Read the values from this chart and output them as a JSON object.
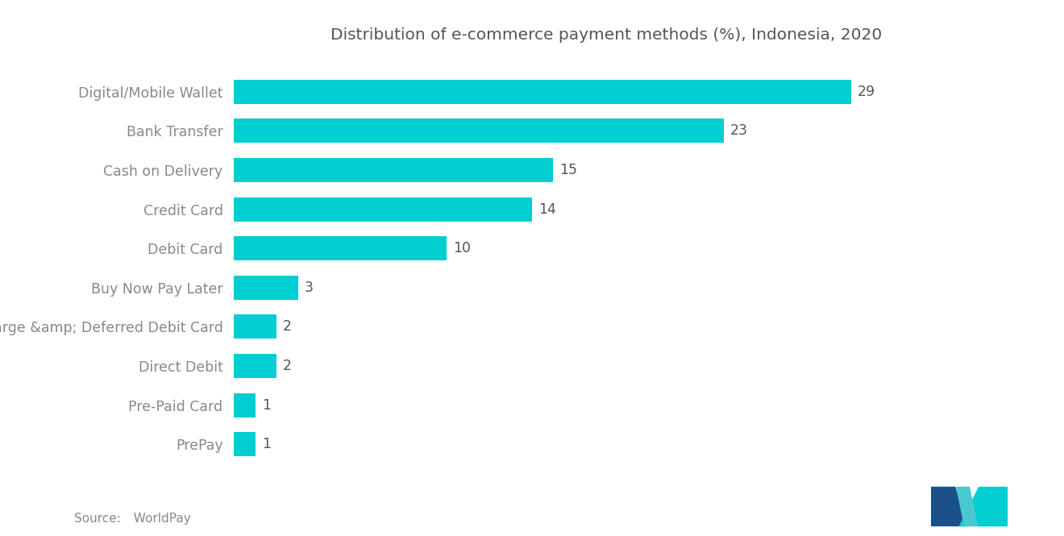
{
  "title": "Distribution of e-commerce payment methods (%), Indonesia, 2020",
  "categories": [
    "PrePay",
    "Pre-Paid Card",
    "Direct Debit",
    "Charge &amp; Deferred Debit Card",
    "Buy Now Pay Later",
    "Debit Card",
    "Credit Card",
    "Cash on Delivery",
    "Bank Transfer",
    "Digital/Mobile Wallet"
  ],
  "values": [
    1,
    1,
    2,
    2,
    3,
    10,
    14,
    15,
    23,
    29
  ],
  "bar_color": "#00CED1",
  "label_color": "#888888",
  "value_color": "#555555",
  "title_color": "#555555",
  "background_color": "#FFFFFF",
  "source_label": "Source:",
  "source_value": "  WorldPay",
  "xlim": [
    0,
    35
  ],
  "title_fontsize": 14.5,
  "label_fontsize": 12.5,
  "value_fontsize": 12.5,
  "source_fontsize": 11,
  "bar_height": 0.62,
  "logo_dark_color": "#1B4F8A",
  "logo_teal_color": "#00CED1"
}
